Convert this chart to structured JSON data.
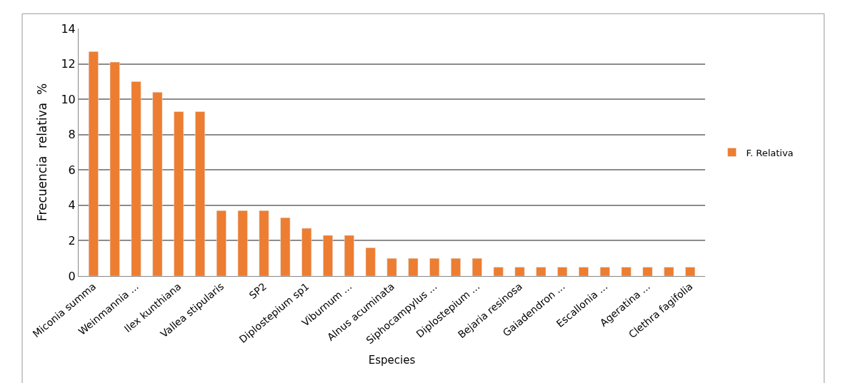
{
  "chart_data": {
    "type": "bar",
    "xlabel": "Especies",
    "ylabel": "Frecuencia  relativa  %",
    "categories": [
      "Miconia summa",
      null,
      "Weinmannia ...",
      null,
      "Ilex kunthiana",
      null,
      "Vallea stipularis",
      null,
      "SP2",
      null,
      "Diplostepium sp1",
      null,
      "Viburnum ...",
      null,
      "Alnus acuminata",
      null,
      "Siphocampylus ...",
      null,
      "Diplostepium ...",
      null,
      "Bejaria resinosa",
      null,
      "Gaiadendron ...",
      null,
      "Escallonia ...",
      null,
      "Ageratina ...",
      null,
      "Clethra fagifolia"
    ],
    "series": [
      {
        "name": "F. Relativa",
        "color": "#ed7d31",
        "values": [
          12.7,
          12.1,
          11.0,
          10.4,
          9.3,
          9.3,
          3.7,
          3.7,
          3.7,
          3.3,
          2.7,
          2.3,
          2.3,
          1.6,
          1.0,
          1.0,
          1.0,
          1.0,
          1.0,
          0.5,
          0.5,
          0.5,
          0.5,
          0.5,
          0.5,
          0.5,
          0.5,
          0.5,
          0.5
        ]
      }
    ],
    "ylim": [
      0,
      14
    ],
    "yticks": [
      0,
      2,
      4,
      6,
      8,
      10,
      12,
      14
    ],
    "grid": "y",
    "legend": "right"
  }
}
